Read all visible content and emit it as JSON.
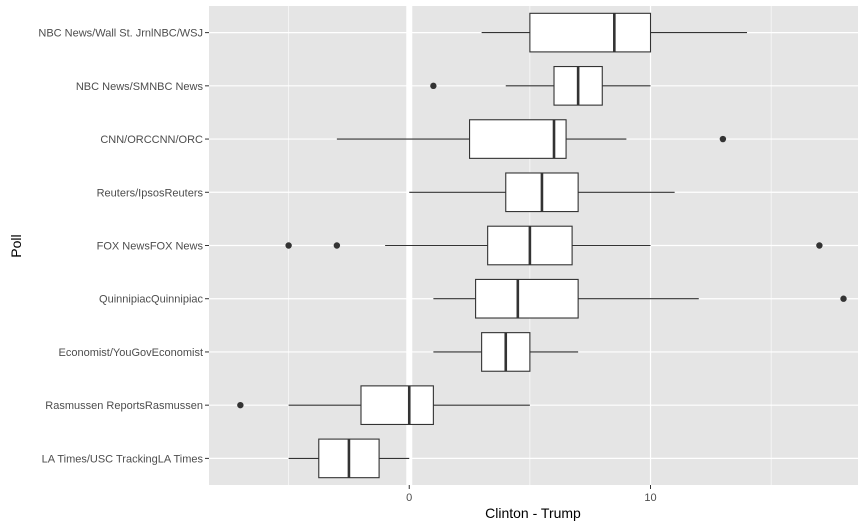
{
  "chart_data": {
    "type": "boxplot",
    "xlabel": "Clinton - Trump",
    "ylabel": "Poll",
    "xlim": [
      -8.3,
      18.6
    ],
    "x_ticks": [
      0,
      10
    ],
    "x_tick_labels": [
      "0",
      "10"
    ],
    "grid": true,
    "reference_line": {
      "x": 0,
      "color": "#ffffff"
    },
    "colors": {
      "panel": "#e5e5e5",
      "grid": "#ffffff",
      "box_fill": "#ffffff",
      "box_line": "#333333",
      "outlier": "#333333"
    },
    "categories": [
      "NBC News/Wall St. JrnlNBC/WSJ",
      "NBC News/SMNBC News",
      "CNN/ORCCNN/ORC",
      "Reuters/IpsosReuters",
      "FOX NewsFOX News",
      "QuinnipiacQuinnipiac",
      "Economist/YouGovEconomist",
      "Rasmussen ReportsRasmussen",
      "LA Times/USC TrackingLA Times"
    ],
    "boxes": [
      {
        "whisker_low": 3,
        "q1": 5,
        "median": 8.5,
        "q3": 10,
        "whisker_high": 14,
        "outliers": []
      },
      {
        "whisker_low": 4,
        "q1": 6,
        "median": 7,
        "q3": 8,
        "whisker_high": 10,
        "outliers": [
          1
        ]
      },
      {
        "whisker_low": -3,
        "q1": 2.5,
        "median": 6,
        "q3": 6.5,
        "whisker_high": 9,
        "outliers": [
          13
        ]
      },
      {
        "whisker_low": 0,
        "q1": 4,
        "median": 5.5,
        "q3": 7,
        "whisker_high": 11,
        "outliers": []
      },
      {
        "whisker_low": -1,
        "q1": 3.25,
        "median": 5,
        "q3": 6.75,
        "whisker_high": 10,
        "outliers": [
          -5,
          -3,
          17
        ]
      },
      {
        "whisker_low": 1,
        "q1": 2.75,
        "median": 4.5,
        "q3": 7,
        "whisker_high": 12,
        "outliers": [
          18
        ]
      },
      {
        "whisker_low": 1,
        "q1": 3,
        "median": 4,
        "q3": 5,
        "whisker_high": 7,
        "outliers": []
      },
      {
        "whisker_low": -5,
        "q1": -2,
        "median": 0,
        "q3": 1,
        "whisker_high": 5,
        "outliers": [
          -7
        ]
      },
      {
        "whisker_low": -5,
        "q1": -3.75,
        "median": -2.5,
        "q3": -1.25,
        "whisker_high": 0,
        "outliers": []
      }
    ]
  }
}
